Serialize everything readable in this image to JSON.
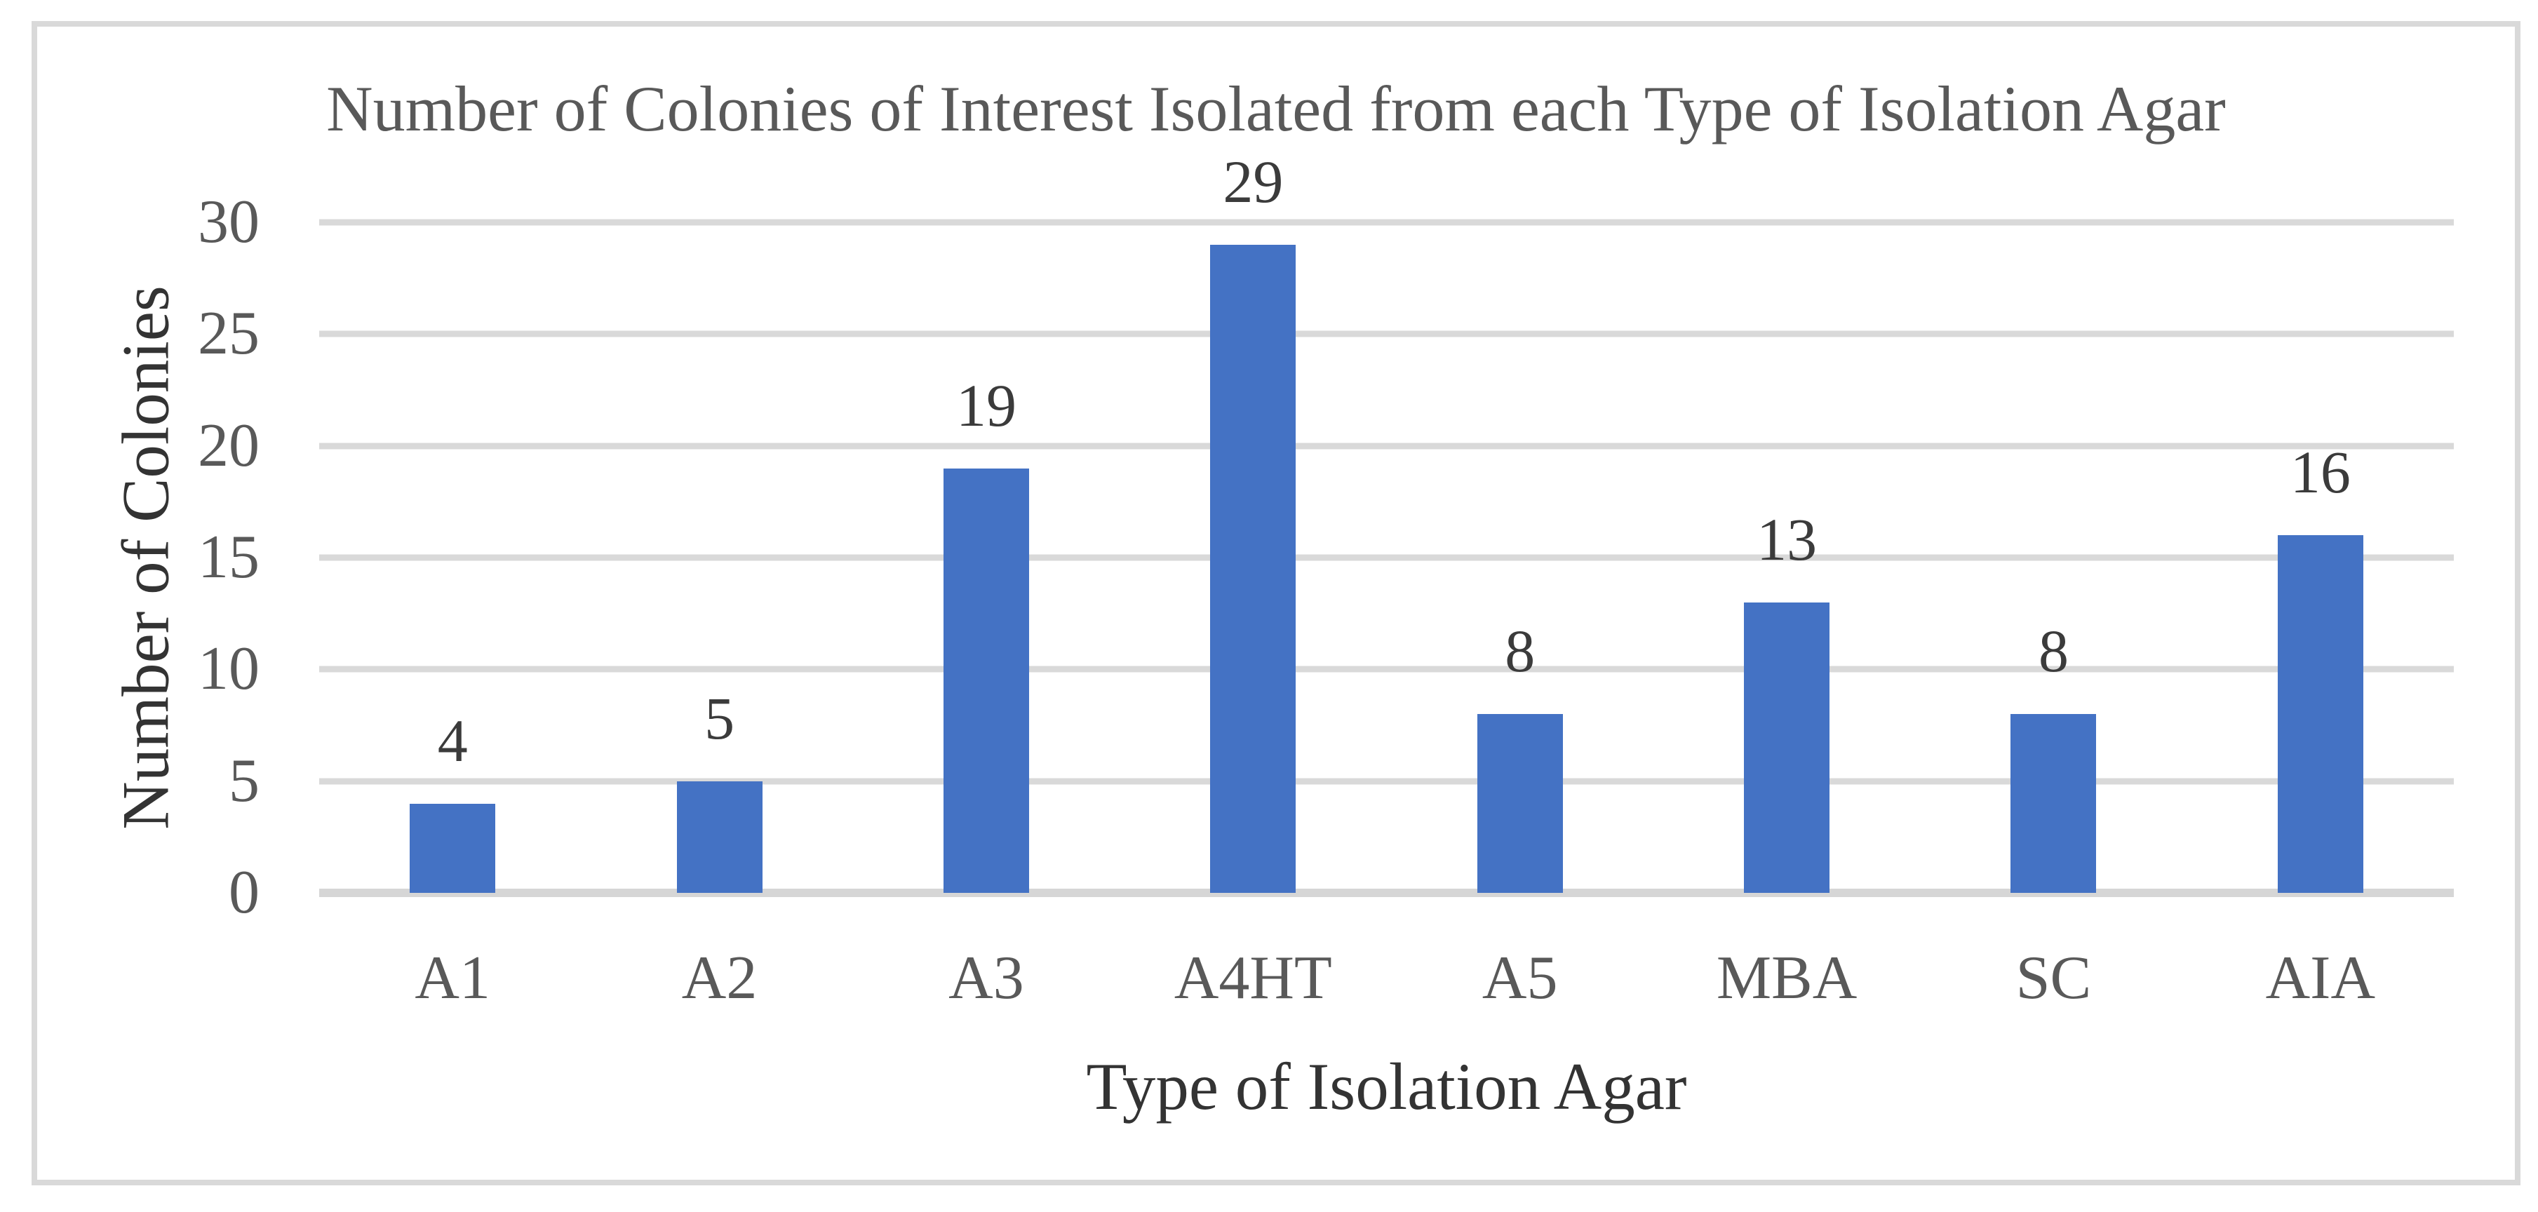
{
  "chart_data": {
    "type": "bar",
    "title": "Number of Colonies of Interest Isolated from each Type of Isolation Agar",
    "xlabel": "Type of Isolation Agar",
    "ylabel": "Number of Colonies",
    "categories": [
      "A1",
      "A2",
      "A3",
      "A4HT",
      "A5",
      "MBA",
      "SC",
      "AIA"
    ],
    "values": [
      4,
      5,
      19,
      29,
      8,
      13,
      8,
      16
    ],
    "data_labels": [
      "4",
      "5",
      "19",
      "29",
      "8",
      "13",
      "8",
      "16"
    ],
    "yticks": [
      0,
      5,
      10,
      15,
      20,
      25,
      30
    ],
    "ylim": [
      0,
      30
    ],
    "grid": "horizontal",
    "legend_position": "none",
    "bar_color": "#4472C4",
    "gridline_color": "#D9D9D9",
    "frame_border_color": "#D9D9D9",
    "title_color": "#595959",
    "tick_label_color": "#595959",
    "data_label_color": "#3B3B3B",
    "axis_title_color": "#333333"
  }
}
